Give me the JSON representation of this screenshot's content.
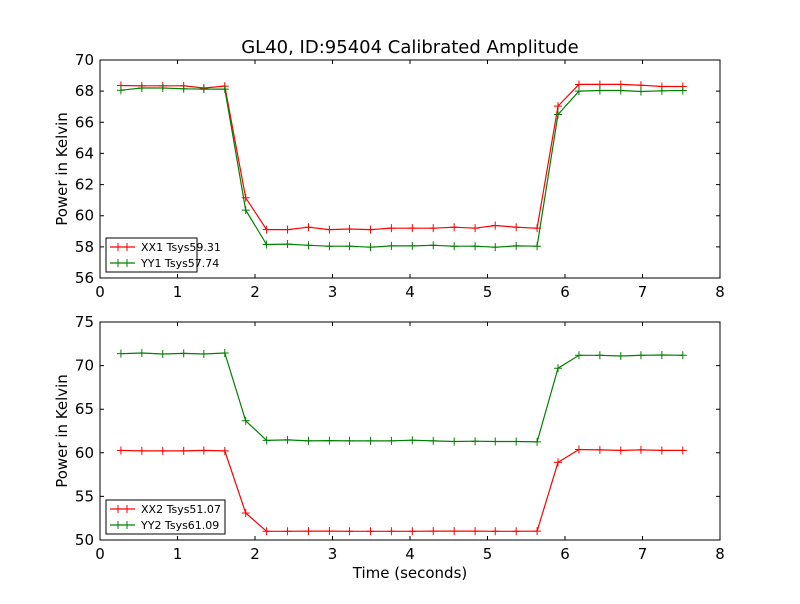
{
  "chart_data": [
    {
      "type": "line",
      "title": "GL40, ID:95404 Calibrated Amplitude",
      "xlabel": "",
      "ylabel": "Power in Kelvin",
      "xlim": [
        0,
        8
      ],
      "ylim": [
        56,
        70
      ],
      "xticks": [
        "0",
        "1",
        "2",
        "3",
        "4",
        "5",
        "6",
        "7",
        "8"
      ],
      "yticks": [
        "56",
        "58",
        "60",
        "62",
        "64",
        "66",
        "68",
        "70"
      ],
      "legend_position": "lower-left",
      "x": [
        0.27,
        0.54,
        0.81,
        1.08,
        1.34,
        1.61,
        1.88,
        2.15,
        2.42,
        2.69,
        2.96,
        3.22,
        3.49,
        3.76,
        4.03,
        4.3,
        4.57,
        4.84,
        5.1,
        5.37,
        5.64,
        5.91,
        6.18,
        6.45,
        6.72,
        6.98,
        7.25,
        7.52
      ],
      "series": [
        {
          "name": "XX1 Tsys59.31",
          "color": "#ff0000",
          "values": [
            68.36,
            68.34,
            68.34,
            68.34,
            68.2,
            68.32,
            61.15,
            59.11,
            59.11,
            59.26,
            59.11,
            59.15,
            59.11,
            59.2,
            59.2,
            59.2,
            59.26,
            59.2,
            59.37,
            59.26,
            59.2,
            67.04,
            68.43,
            68.43,
            68.43,
            68.38,
            68.3,
            68.3
          ]
        },
        {
          "name": "YY1 Tsys57.74",
          "color": "#008000",
          "values": [
            68.06,
            68.2,
            68.2,
            68.15,
            68.13,
            68.13,
            60.36,
            58.15,
            58.18,
            58.1,
            58.04,
            58.04,
            57.98,
            58.06,
            58.06,
            58.1,
            58.04,
            58.04,
            57.98,
            58.06,
            58.04,
            66.5,
            68.0,
            68.04,
            68.04,
            67.98,
            68.02,
            68.04
          ]
        }
      ]
    },
    {
      "type": "line",
      "title": "",
      "xlabel": "Time (seconds)",
      "ylabel": "Power in Kelvin",
      "xlim": [
        0,
        8
      ],
      "ylim": [
        50,
        75
      ],
      "xticks": [
        "0",
        "1",
        "2",
        "3",
        "4",
        "5",
        "6",
        "7",
        "8"
      ],
      "yticks": [
        "50",
        "55",
        "60",
        "65",
        "70",
        "75"
      ],
      "legend_position": "lower-left",
      "x": [
        0.27,
        0.54,
        0.81,
        1.08,
        1.34,
        1.61,
        1.88,
        2.15,
        2.42,
        2.69,
        2.96,
        3.22,
        3.49,
        3.76,
        4.03,
        4.3,
        4.57,
        4.84,
        5.1,
        5.37,
        5.64,
        5.91,
        6.18,
        6.45,
        6.72,
        6.98,
        7.25,
        7.52
      ],
      "series": [
        {
          "name": "XX2 Tsys51.07",
          "color": "#ff0000",
          "values": [
            60.27,
            60.22,
            60.22,
            60.22,
            60.27,
            60.22,
            53.1,
            51.0,
            51.0,
            51.02,
            51.02,
            51.0,
            51.0,
            51.0,
            51.0,
            51.02,
            51.02,
            51.02,
            51.0,
            51.0,
            51.02,
            58.9,
            60.38,
            60.33,
            60.27,
            60.33,
            60.27,
            60.27
          ]
        },
        {
          "name": "YY2 Tsys61.09",
          "color": "#008000",
          "values": [
            71.37,
            71.44,
            71.33,
            71.4,
            71.33,
            71.44,
            63.67,
            61.42,
            61.48,
            61.37,
            61.4,
            61.37,
            61.37,
            61.37,
            61.44,
            61.37,
            61.3,
            61.33,
            61.3,
            61.3,
            61.25,
            69.7,
            71.18,
            71.18,
            71.1,
            71.18,
            71.22,
            71.18
          ]
        }
      ]
    }
  ]
}
